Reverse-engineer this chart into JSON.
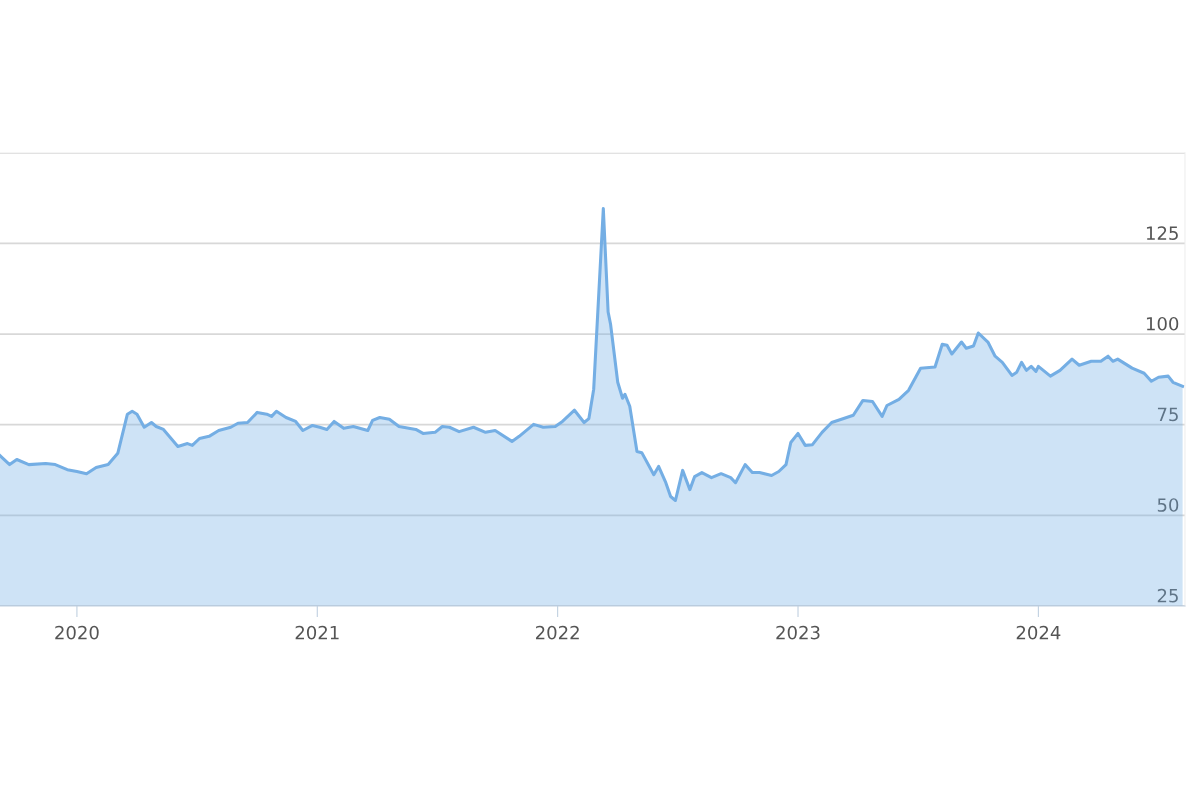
{
  "chart_data": {
    "type": "area",
    "x": [
      2019.68,
      2019.72,
      2019.75,
      2019.8,
      2019.87,
      2019.91,
      2019.96,
      2020.0,
      2020.04,
      2020.08,
      2020.13,
      2020.17,
      2020.21,
      2020.23,
      2020.25,
      2020.28,
      2020.31,
      2020.33,
      2020.36,
      2020.42,
      2020.46,
      2020.48,
      2020.51,
      2020.55,
      2020.59,
      2020.64,
      2020.67,
      2020.71,
      2020.75,
      2020.79,
      2020.81,
      2020.83,
      2020.87,
      2020.91,
      2020.94,
      2020.98,
      2021.01,
      2021.04,
      2021.07,
      2021.11,
      2021.15,
      2021.21,
      2021.23,
      2021.26,
      2021.3,
      2021.34,
      2021.41,
      2021.44,
      2021.49,
      2021.52,
      2021.55,
      2021.59,
      2021.65,
      2021.7,
      2021.74,
      2021.81,
      2021.84,
      2021.9,
      2021.94,
      2021.99,
      2022.02,
      2022.07,
      2022.11,
      2022.13,
      2022.15,
      2022.19,
      2022.21,
      2022.22,
      2022.25,
      2022.27,
      2022.28,
      2022.3,
      2022.33,
      2022.35,
      2022.4,
      2022.42,
      2022.45,
      2022.47,
      2022.49,
      2022.52,
      2022.55,
      2022.57,
      2022.6,
      2022.64,
      2022.68,
      2022.72,
      2022.74,
      2022.78,
      2022.81,
      2022.84,
      2022.89,
      2022.92,
      2022.95,
      2022.97,
      2023.0,
      2023.03,
      2023.06,
      2023.1,
      2023.14,
      2023.19,
      2023.23,
      2023.27,
      2023.31,
      2023.35,
      2023.37,
      2023.42,
      2023.46,
      2023.51,
      2023.57,
      2023.6,
      2023.62,
      2023.64,
      2023.68,
      2023.7,
      2023.73,
      2023.75,
      2023.79,
      2023.82,
      2023.85,
      2023.89,
      2023.91,
      2023.93,
      2023.95,
      2023.97,
      2023.99,
      2024.0,
      2024.05,
      2024.09,
      2024.14,
      2024.17,
      2024.22,
      2024.26,
      2024.29,
      2024.31,
      2024.33,
      2024.39,
      2024.44,
      2024.47,
      2024.5,
      2024.54,
      2024.56,
      2024.6
    ],
    "series": [
      {
        "color": "#74aee4",
        "values": [
          66.5,
          64.0,
          65.4,
          64.0,
          64.3,
          64.0,
          62.6,
          62.1,
          61.5,
          63.2,
          64.0,
          67.1,
          77.9,
          78.7,
          77.9,
          74.3,
          75.6,
          74.5,
          73.7,
          69.0,
          69.8,
          69.3,
          71.2,
          71.8,
          73.4,
          74.3,
          75.4,
          75.6,
          78.4,
          77.9,
          77.3,
          78.7,
          77.0,
          75.9,
          73.4,
          74.8,
          74.3,
          73.7,
          75.9,
          74.0,
          74.5,
          73.4,
          76.2,
          77.0,
          76.5,
          74.5,
          73.7,
          72.6,
          72.9,
          74.5,
          74.3,
          73.1,
          74.3,
          72.9,
          73.4,
          70.4,
          71.8,
          75.1,
          74.3,
          74.5,
          75.9,
          79.0,
          75.6,
          76.7,
          84.8,
          134.6,
          106.1,
          102.8,
          86.7,
          82.3,
          83.4,
          80.1,
          67.6,
          67.3,
          61.2,
          63.5,
          59.0,
          55.2,
          54.1,
          62.4,
          57.1,
          60.7,
          61.8,
          60.4,
          61.5,
          60.4,
          59.0,
          64.0,
          61.8,
          61.8,
          61.0,
          62.1,
          64.0,
          70.1,
          72.6,
          69.3,
          69.5,
          72.9,
          75.6,
          76.7,
          77.6,
          81.7,
          81.4,
          77.3,
          80.3,
          82.0,
          84.5,
          90.6,
          90.9,
          97.2,
          96.9,
          94.5,
          97.8,
          96.1,
          96.7,
          100.3,
          97.8,
          93.9,
          92.2,
          88.6,
          89.5,
          92.2,
          90.0,
          91.1,
          89.7,
          91.1,
          88.4,
          90.0,
          93.1,
          91.4,
          92.5,
          92.5,
          93.9,
          92.5,
          93.1,
          90.6,
          89.2,
          87.0,
          88.1,
          88.4,
          86.7,
          85.6
        ]
      }
    ],
    "xlim": [
      2019.68,
      2024.61
    ],
    "xticks": [
      2020,
      2021,
      2022,
      2023,
      2024
    ],
    "ylim": [
      25,
      150
    ],
    "yticks": [
      25,
      50,
      75,
      100,
      125,
      {
        "value": 150,
        "label": null
      }
    ],
    "grid": "y"
  }
}
